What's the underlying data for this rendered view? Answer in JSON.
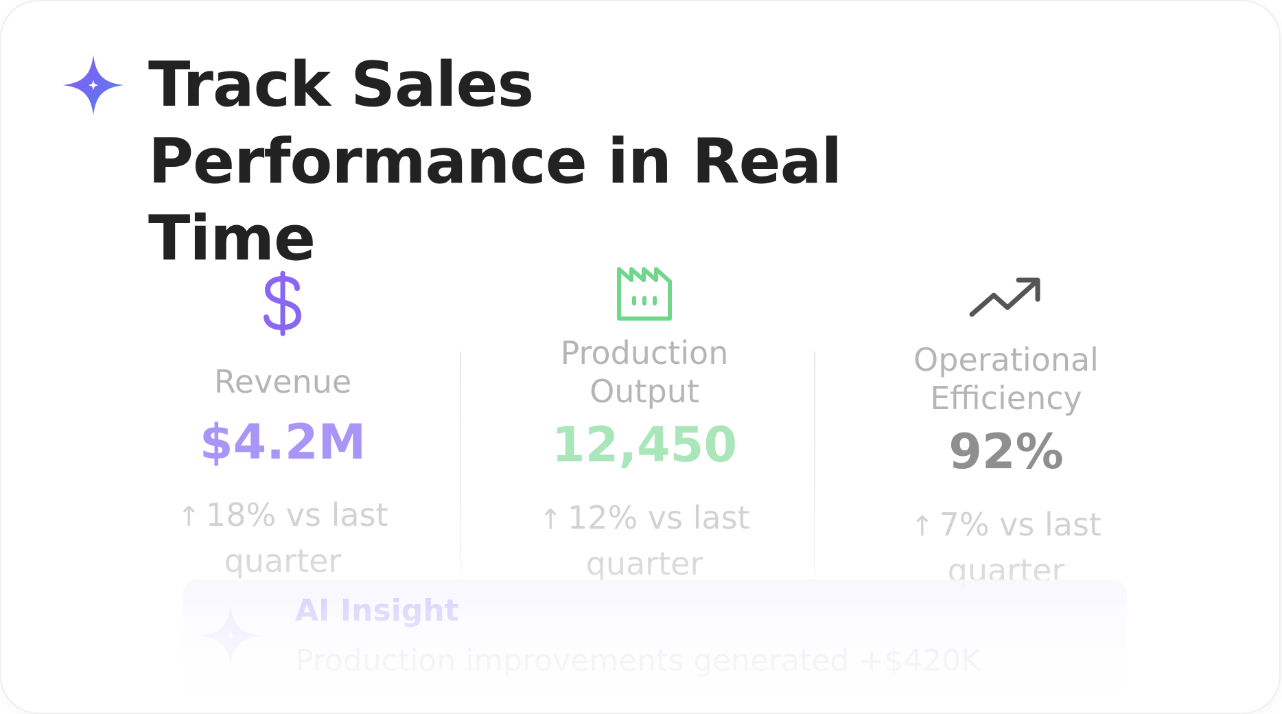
{
  "header": {
    "title": "Track Sales Performance in Real Time",
    "icon": "sparkle-icon"
  },
  "metrics": [
    {
      "icon": "dollar-icon",
      "label": "Revenue",
      "value": "$4.2M",
      "change": "18% vs last quarter",
      "color": "#a895f7"
    },
    {
      "icon": "factory-icon",
      "label": "Production Output",
      "value": "12,450",
      "change": "12% vs last quarter",
      "color": "#a9e6b9"
    },
    {
      "icon": "trend-up-icon",
      "label": "Operational Efficiency",
      "value": "92%",
      "change": "7% vs last quarter",
      "color": "#8f8f8f"
    }
  ],
  "change_arrow": "↑",
  "insight": {
    "icon": "sparkle-icon",
    "title": "AI Insight",
    "text": "Production improvements generated +$420K"
  },
  "colors": {
    "accent_purple": "#7b5cf0",
    "accent_blue": "#4f7fe8",
    "accent_green": "#6fd68a",
    "text_dark": "#222222"
  }
}
